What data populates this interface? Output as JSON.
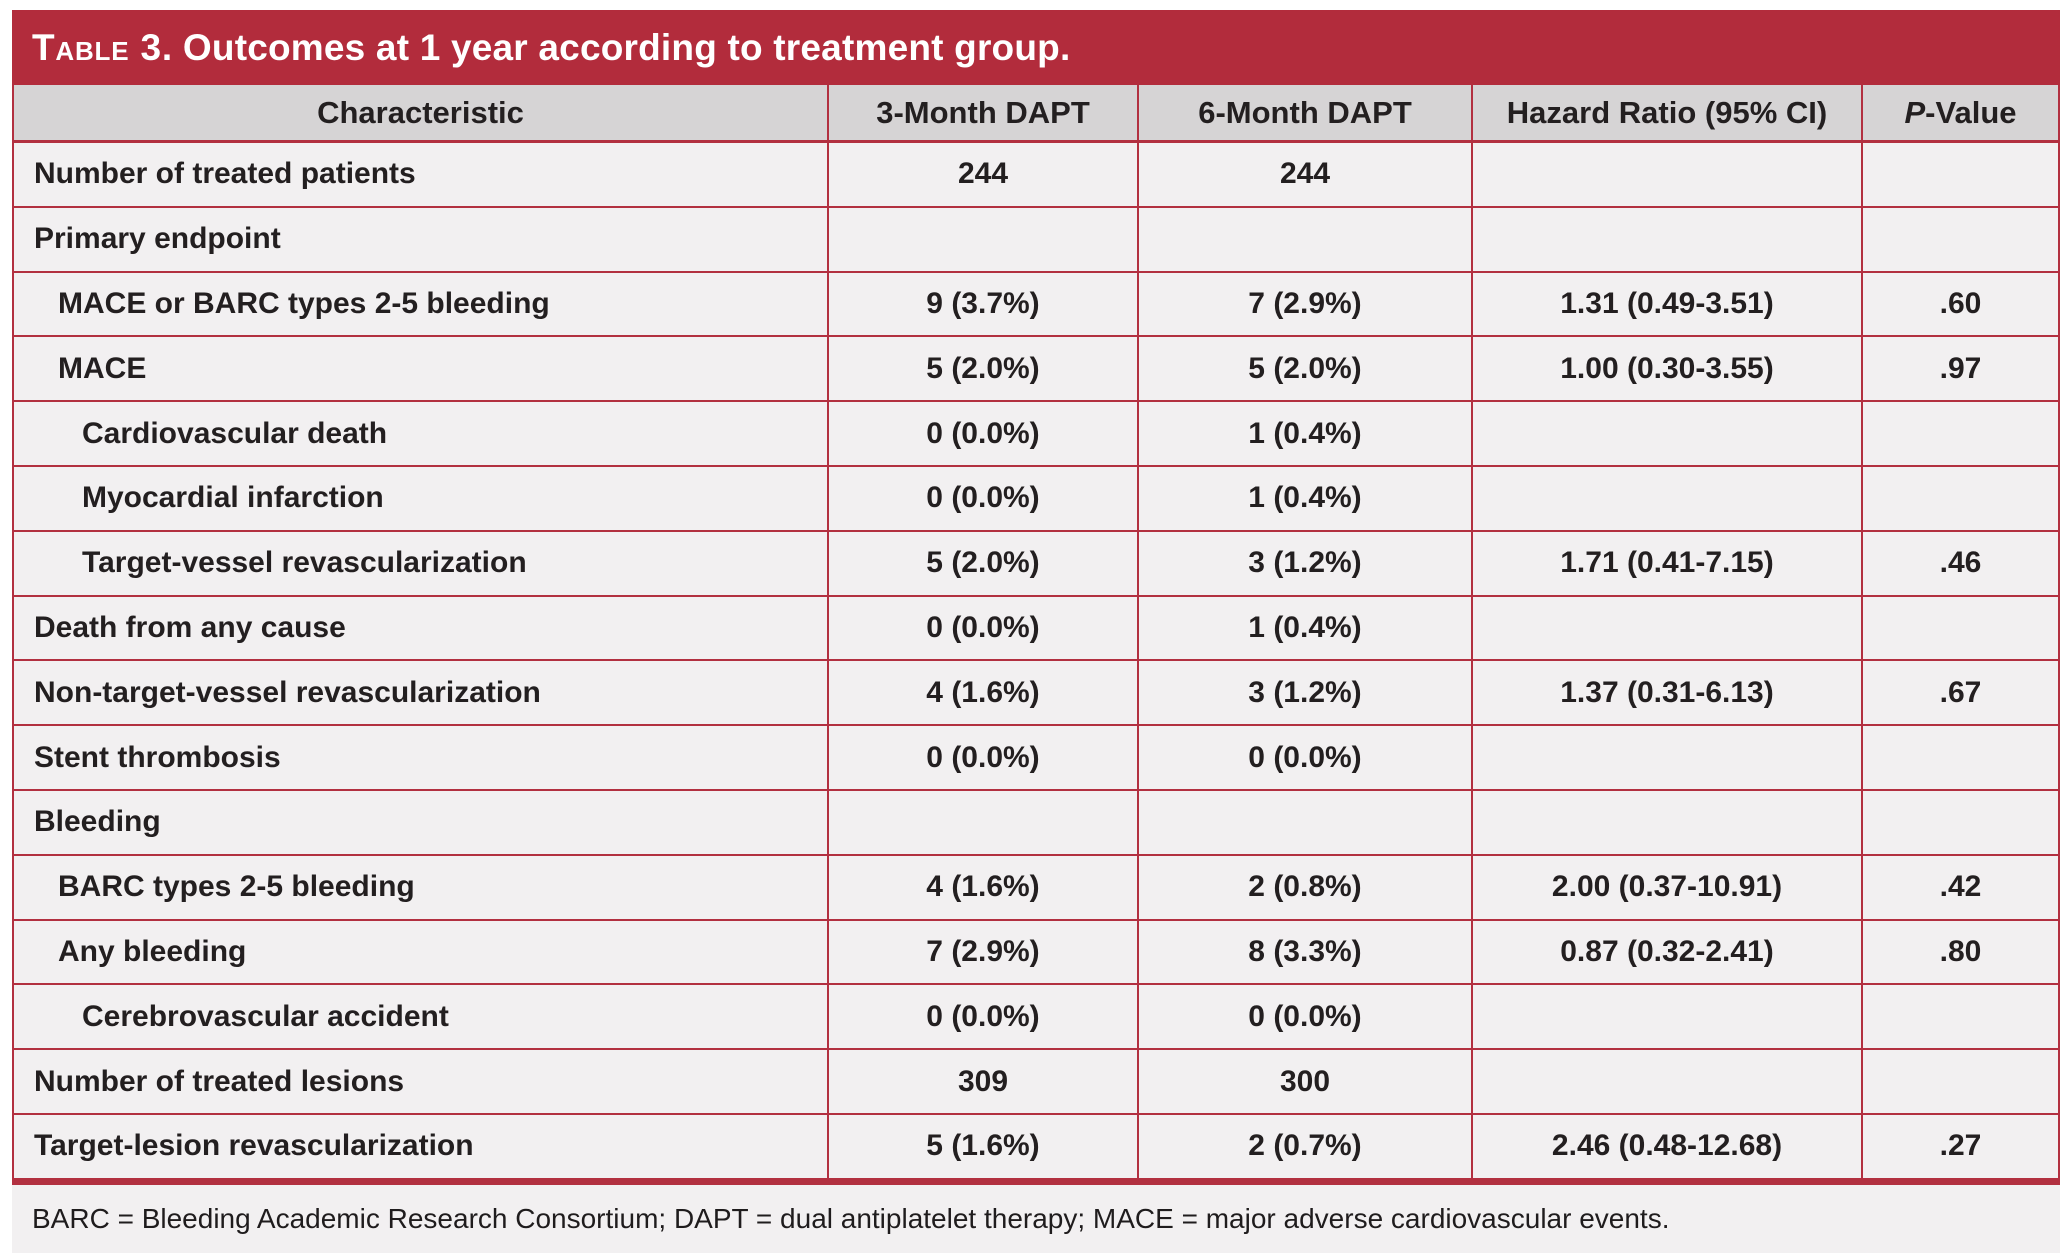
{
  "title": {
    "prefix": "Table 3.",
    "text": "Outcomes at 1 year according to treatment group."
  },
  "colors": {
    "title_bar": "#b22c3c",
    "grid_line": "#b23040",
    "header_bg": "#d6d4d5",
    "row_bg": "#f2f0f1",
    "text": "#231f20",
    "title_text": "#ffffff"
  },
  "table": {
    "headers": {
      "characteristic": "Characteristic",
      "dapt3": "3-Month DAPT",
      "dapt6": "6-Month DAPT",
      "hazard": "Hazard Ratio (95% CI)",
      "p_italic": "P",
      "p_rest": "-Value"
    },
    "rows": [
      {
        "label": "Number of treated patients",
        "indent": 0,
        "m3": "244",
        "m6": "244",
        "hr": "",
        "p": ""
      },
      {
        "label": "Primary endpoint",
        "indent": 0,
        "m3": "",
        "m6": "",
        "hr": "",
        "p": ""
      },
      {
        "label": "MACE or BARC types 2-5 bleeding",
        "indent": 1,
        "m3": "9 (3.7%)",
        "m6": "7 (2.9%)",
        "hr": "1.31 (0.49-3.51)",
        "p": ".60"
      },
      {
        "label": "MACE",
        "indent": 1,
        "m3": "5 (2.0%)",
        "m6": "5 (2.0%)",
        "hr": "1.00 (0.30-3.55)",
        "p": ".97"
      },
      {
        "label": "Cardiovascular death",
        "indent": 2,
        "m3": "0 (0.0%)",
        "m6": "1 (0.4%)",
        "hr": "",
        "p": ""
      },
      {
        "label": "Myocardial infarction",
        "indent": 2,
        "m3": "0 (0.0%)",
        "m6": "1 (0.4%)",
        "hr": "",
        "p": ""
      },
      {
        "label": "Target-vessel revascularization",
        "indent": 2,
        "m3": "5 (2.0%)",
        "m6": "3 (1.2%)",
        "hr": "1.71 (0.41-7.15)",
        "p": ".46"
      },
      {
        "label": "Death from any cause",
        "indent": 0,
        "m3": "0 (0.0%)",
        "m6": "1 (0.4%)",
        "hr": "",
        "p": ""
      },
      {
        "label": "Non-target-vessel revascularization",
        "indent": 0,
        "m3": "4 (1.6%)",
        "m6": "3 (1.2%)",
        "hr": "1.37 (0.31-6.13)",
        "p": ".67"
      },
      {
        "label": "Stent thrombosis",
        "indent": 0,
        "m3": "0 (0.0%)",
        "m6": "0 (0.0%)",
        "hr": "",
        "p": ""
      },
      {
        "label": "Bleeding",
        "indent": 0,
        "m3": "",
        "m6": "",
        "hr": "",
        "p": ""
      },
      {
        "label": "BARC types 2-5 bleeding",
        "indent": 1,
        "m3": "4 (1.6%)",
        "m6": "2 (0.8%)",
        "hr": "2.00 (0.37-10.91)",
        "p": ".42"
      },
      {
        "label": "Any bleeding",
        "indent": 1,
        "m3": "7 (2.9%)",
        "m6": "8 (3.3%)",
        "hr": "0.87 (0.32-2.41)",
        "p": ".80"
      },
      {
        "label": "Cerebrovascular accident",
        "indent": 2,
        "m3": "0 (0.0%)",
        "m6": "0 (0.0%)",
        "hr": "",
        "p": ""
      },
      {
        "label": "Number of treated lesions",
        "indent": 0,
        "m3": "309",
        "m6": "300",
        "hr": "",
        "p": ""
      },
      {
        "label": "Target-lesion revascularization",
        "indent": 0,
        "m3": "5 (1.6%)",
        "m6": "2 (0.7%)",
        "hr": "2.46 (0.48-12.68)",
        "p": ".27"
      }
    ]
  },
  "footnote": "BARC = Bleeding Academic Research Consortium; DAPT = dual antiplatelet therapy; MACE = major adverse cardiovascular events."
}
